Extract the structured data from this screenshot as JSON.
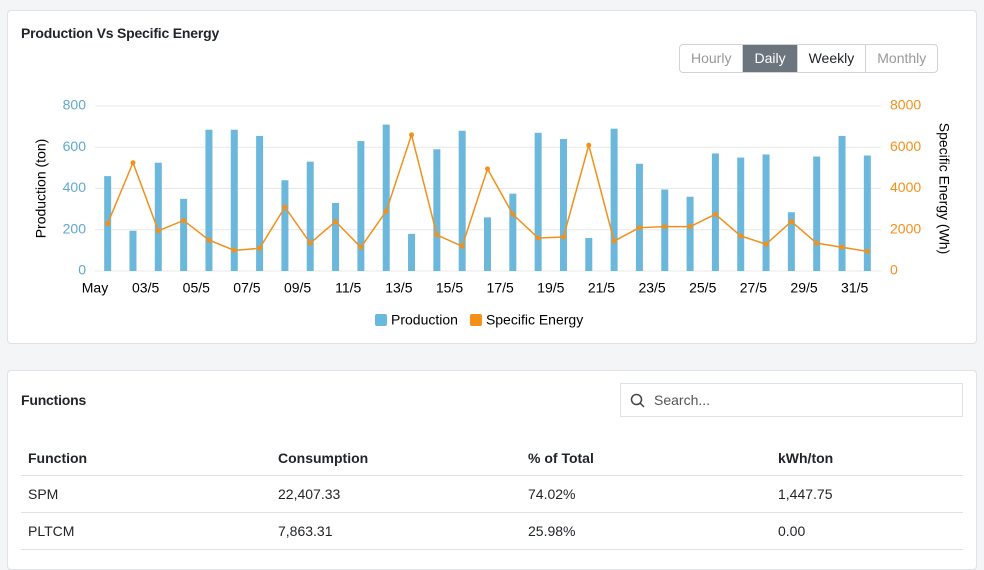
{
  "chart_data": {
    "type": "combo",
    "title": "Production Vs Specific Energy",
    "categories": [
      "May",
      null,
      "03/5",
      null,
      "05/5",
      null,
      "07/5",
      null,
      "09/5",
      null,
      "11/5",
      null,
      "13/5",
      null,
      "15/5",
      null,
      "17/5",
      null,
      "19/5",
      null,
      "21/5",
      null,
      "23/5",
      null,
      "25/5",
      null,
      "27/5",
      null,
      "29/5",
      null,
      "31/5"
    ],
    "series": [
      {
        "name": "Production",
        "color": "#6bb8dc",
        "type": "bar",
        "values": [
          460,
          195,
          525,
          350,
          685,
          685,
          655,
          440,
          530,
          330,
          630,
          710,
          180,
          590,
          680,
          260,
          375,
          670,
          640,
          160,
          690,
          520,
          395,
          360,
          570,
          550,
          565,
          285,
          555,
          655,
          560
        ]
      },
      {
        "name": "Specific Energy",
        "color": "#f39019",
        "type": "line",
        "axis": "y2",
        "values": [
          2300,
          5250,
          1950,
          2450,
          1500,
          1000,
          1100,
          3100,
          1350,
          2400,
          1150,
          2900,
          6600,
          1750,
          1200,
          4950,
          2750,
          1600,
          1650,
          6100,
          1450,
          2100,
          2150,
          2150,
          2750,
          1700,
          1300,
          2400,
          1350,
          1150,
          950
        ]
      }
    ],
    "ylabel": "Production (ton)",
    "y2label": "Specific Energy (Wh)",
    "ylim": [
      0,
      800
    ],
    "yticks": [
      0,
      200,
      400,
      600,
      800
    ],
    "y2lim": [
      0,
      8000
    ],
    "y2ticks": [
      0,
      2000,
      4000,
      6000,
      8000
    ],
    "grid": true,
    "legend": "bottom"
  },
  "controls": {
    "buttons": [
      "Hourly",
      "Daily",
      "Weekly",
      "Monthly"
    ],
    "active": 1
  },
  "functions": {
    "title": "Functions",
    "search_placeholder": "Search...",
    "table": {
      "columns": [
        "Function",
        "Consumption",
        "% of Total",
        "kWh/ton"
      ],
      "rows": [
        [
          "SPM",
          "22,407.33",
          "74.02%",
          "1,447.75"
        ],
        [
          "PLTCM",
          "7,863.31",
          "25.98%",
          "0.00"
        ]
      ]
    }
  }
}
